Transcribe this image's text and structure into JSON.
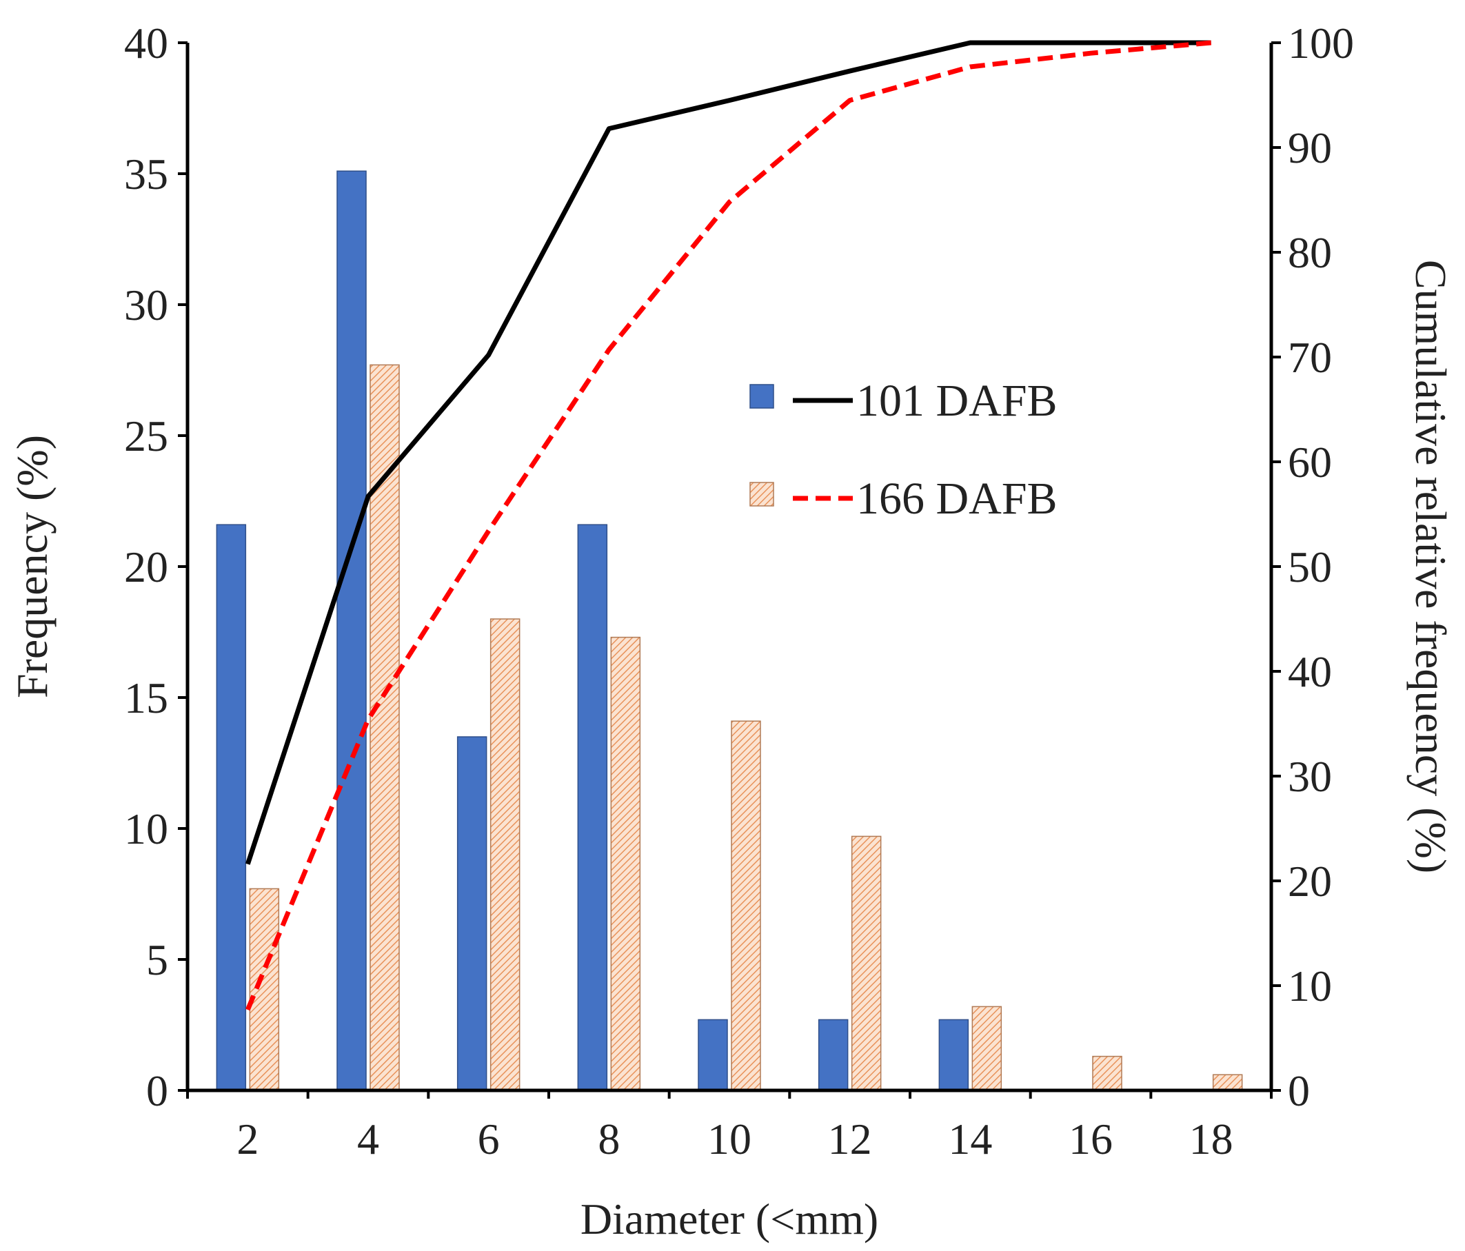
{
  "chart_data": {
    "type": "bar",
    "title": "",
    "xlabel": "Diameter (<mm)",
    "ylabel": "Frequency (%)",
    "y2label": "Cumulative relative frequency (%)",
    "categories": [
      "2",
      "4",
      "6",
      "8",
      "10",
      "12",
      "14",
      "16",
      "18"
    ],
    "ylim": [
      0,
      40
    ],
    "yticks": [
      "0",
      "5",
      "10",
      "15",
      "20",
      "25",
      "30",
      "35",
      "40"
    ],
    "y2lim": [
      0,
      100
    ],
    "y2ticks": [
      "0",
      "10",
      "20",
      "30",
      "40",
      "50",
      "60",
      "70",
      "80",
      "90",
      "100"
    ],
    "grid": false,
    "legend_position": "center-right",
    "series": [
      {
        "name": "101 DAFB",
        "kind": "bar",
        "color": "#4472C4",
        "values": [
          21.6,
          35.1,
          13.5,
          21.6,
          2.7,
          2.7,
          2.7,
          0,
          0
        ]
      },
      {
        "name": "166 DAFB",
        "kind": "bar",
        "color": "#F4B183",
        "pattern": "hatch",
        "values": [
          7.7,
          27.7,
          18.0,
          17.3,
          14.1,
          9.7,
          3.2,
          1.3,
          0.6
        ]
      },
      {
        "name": "101 DAFB",
        "kind": "line",
        "axis": "y2",
        "color": "#000000",
        "style": "solid",
        "values": [
          21.6,
          56.7,
          70.2,
          91.8,
          94.5,
          97.3,
          100,
          100,
          100
        ]
      },
      {
        "name": "166 DAFB",
        "kind": "line",
        "axis": "y2",
        "color": "#FF0000",
        "style": "dashed",
        "values": [
          7.7,
          35.4,
          53.4,
          70.7,
          84.8,
          94.5,
          97.7,
          99.0,
          100
        ]
      }
    ],
    "legend": [
      {
        "label": "101 DAFB",
        "bar_color": "#4472C4",
        "line_color": "#000000",
        "line_style": "solid"
      },
      {
        "label": "166 DAFB",
        "bar_color": "#F4B183",
        "line_color": "#FF0000",
        "line_style": "dashed"
      }
    ]
  }
}
